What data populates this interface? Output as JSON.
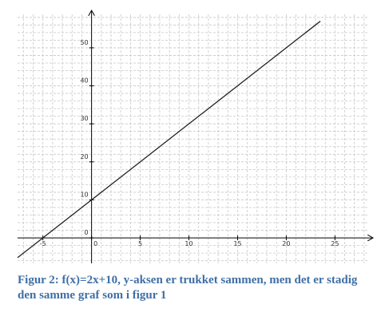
{
  "chart_data": {
    "type": "line",
    "x": [
      -7.6,
      23.5
    ],
    "series": [
      {
        "color": "#222222",
        "values": [
          -5.2,
          57
        ]
      }
    ],
    "xlim": [
      -7.6,
      28.5
    ],
    "ylim": [
      -6.7,
      58.8
    ],
    "xticks": [
      -5,
      0,
      5,
      10,
      15,
      20,
      25
    ],
    "yticks": [
      0,
      10,
      20,
      30,
      40,
      50
    ],
    "grid": true,
    "x_minor_step": 1,
    "y_minor_step": 2
  },
  "caption": "Figur 2: f(x)=2x+10, y-aksen er trukket sammen, men det er stadig den samme graf som i figur 1"
}
